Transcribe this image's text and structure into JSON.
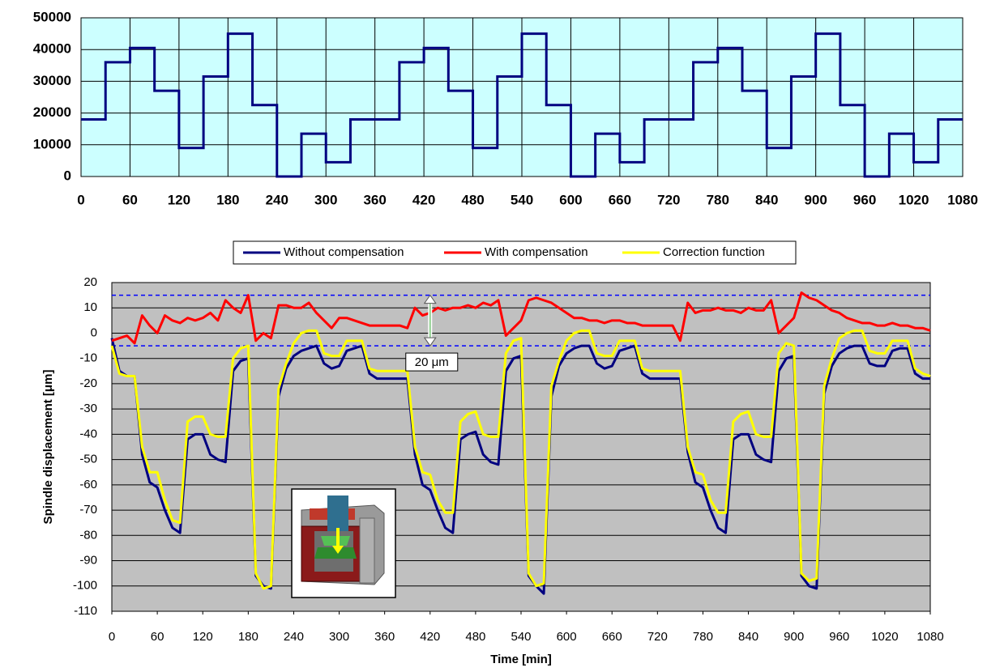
{
  "chart_data": [
    {
      "type": "step",
      "x": [
        0,
        30,
        60,
        90,
        120,
        150,
        180,
        210,
        240,
        270,
        300,
        330,
        360,
        390,
        420,
        450,
        480,
        510,
        540,
        570,
        600,
        630,
        660,
        690,
        720,
        750,
        780,
        810,
        840,
        870,
        900,
        930,
        960,
        990,
        1020,
        1050,
        1080
      ],
      "values": [
        18000,
        36000,
        40500,
        27000,
        9000,
        31500,
        45000,
        22500,
        0,
        13500,
        4500,
        18000,
        18000,
        36000,
        40500,
        27000,
        9000,
        31500,
        45000,
        22500,
        0,
        13500,
        4500,
        18000,
        18000,
        36000,
        40500,
        27000,
        9000,
        31500,
        45000,
        22500,
        0,
        13500,
        4500,
        18000,
        18000
      ],
      "color": "#000080",
      "plot_background": "#ccffff",
      "grid": "both",
      "xlim": [
        0,
        1080
      ],
      "xticks": [
        0,
        60,
        120,
        180,
        240,
        300,
        360,
        420,
        480,
        540,
        600,
        660,
        720,
        780,
        840,
        900,
        960,
        1020,
        1080
      ],
      "ylim": [
        0,
        50000
      ],
      "yticks": [
        0,
        10000,
        20000,
        30000,
        40000,
        50000
      ]
    },
    {
      "type": "line",
      "x_label": "Time [min]",
      "y_label": "Spindle displacement [μm]",
      "plot_background": "#c0c0c0",
      "grid": "y",
      "xlim": [
        0,
        1080
      ],
      "xticks": [
        0,
        60,
        120,
        180,
        240,
        300,
        360,
        420,
        480,
        540,
        600,
        660,
        720,
        780,
        840,
        900,
        960,
        1020,
        1080
      ],
      "ylim": [
        -110,
        20
      ],
      "yticks": [
        -110,
        -100,
        -90,
        -80,
        -70,
        -60,
        -50,
        -40,
        -30,
        -20,
        -10,
        0,
        10,
        20
      ],
      "reference_lines": [
        15,
        -5
      ],
      "reference_color": "#0000ff",
      "annotation": {
        "text": "20 μm",
        "x": 420,
        "from": 15,
        "to": -5
      },
      "x": [
        0,
        10,
        20,
        30,
        40,
        50,
        60,
        70,
        80,
        90,
        100,
        110,
        120,
        130,
        140,
        150,
        160,
        170,
        180,
        190,
        200,
        210,
        220,
        230,
        240,
        250,
        260,
        270,
        280,
        290,
        300,
        310,
        320,
        330,
        340,
        350,
        360,
        370,
        380,
        390,
        400,
        410,
        420,
        430,
        440,
        450,
        460,
        470,
        480,
        490,
        500,
        510,
        520,
        530,
        540,
        550,
        560,
        570,
        580,
        590,
        600,
        610,
        620,
        630,
        640,
        650,
        660,
        670,
        680,
        690,
        700,
        710,
        720,
        730,
        740,
        750,
        760,
        770,
        780,
        790,
        800,
        810,
        820,
        830,
        840,
        850,
        860,
        870,
        880,
        890,
        900,
        910,
        920,
        930,
        940,
        950,
        960,
        970,
        980,
        990,
        1000,
        1010,
        1020,
        1030,
        1040,
        1050,
        1060,
        1070,
        1080
      ],
      "series": [
        {
          "name": "Without compensation",
          "color": "#000080",
          "values": [
            -2,
            -15,
            -17,
            -17,
            -48,
            -59,
            -61,
            -70,
            -77,
            -79,
            -42,
            -40,
            -40,
            -48,
            -50,
            -51,
            -15,
            -11,
            -10,
            -96,
            -100,
            -101,
            -25,
            -14,
            -9,
            -7,
            -6,
            -5,
            -12,
            -14,
            -13,
            -7,
            -6,
            -5,
            -16,
            -18,
            -18,
            -18,
            -18,
            -18,
            -48,
            -60,
            -62,
            -70,
            -77,
            -79,
            -42,
            -40,
            -39,
            -48,
            -51,
            -52,
            -15,
            -10,
            -9,
            -96,
            -100,
            -103,
            -25,
            -13,
            -8,
            -6,
            -5,
            -5,
            -12,
            -14,
            -13,
            -7,
            -6,
            -5,
            -16,
            -18,
            -18,
            -18,
            -18,
            -18,
            -47,
            -59,
            -61,
            -70,
            -77,
            -79,
            -42,
            -40,
            -40,
            -48,
            -50,
            -51,
            -15,
            -10,
            -9,
            -96,
            -100,
            -101,
            -24,
            -13,
            -8,
            -6,
            -5,
            -5,
            -12,
            -13,
            -13,
            -7,
            -6,
            -6,
            -16,
            -18,
            -18
          ]
        },
        {
          "name": "With compensation",
          "color": "#ff0000",
          "values": [
            -3,
            -2,
            -1,
            -4,
            7,
            3,
            0,
            7,
            5,
            4,
            6,
            5,
            6,
            8,
            5,
            13,
            10,
            8,
            15,
            -3,
            0,
            -2,
            11,
            11,
            10,
            10,
            12,
            8,
            5,
            2,
            6,
            6,
            5,
            4,
            3,
            3,
            3,
            3,
            3,
            2,
            10,
            7,
            8,
            10,
            9,
            10,
            10,
            11,
            10,
            12,
            11,
            13,
            -1,
            2,
            5,
            13,
            14,
            13,
            12,
            10,
            8,
            6,
            6,
            5,
            5,
            4,
            5,
            5,
            4,
            4,
            3,
            3,
            3,
            3,
            3,
            -3,
            12,
            8,
            9,
            9,
            10,
            9,
            9,
            8,
            10,
            9,
            9,
            13,
            0,
            3,
            6,
            16,
            14,
            13,
            11,
            9,
            8,
            6,
            5,
            4,
            4,
            3,
            3,
            4,
            3,
            3,
            2,
            2,
            1
          ]
        },
        {
          "name": "Correction function",
          "color": "#ffff00",
          "values": [
            -5,
            -16,
            -17,
            -17,
            -45,
            -55,
            -55,
            -66,
            -74,
            -75,
            -35,
            -33,
            -33,
            -40,
            -41,
            -41,
            -10,
            -6,
            -5,
            -95,
            -101,
            -100,
            -22,
            -12,
            -4,
            0,
            1,
            1,
            -8,
            -9,
            -9,
            -3,
            -3,
            -3,
            -14,
            -15,
            -15,
            -15,
            -15,
            -15,
            -45,
            -55,
            -56,
            -66,
            -71,
            -71,
            -35,
            -32,
            -31,
            -40,
            -41,
            -41,
            -8,
            -3,
            -2,
            -95,
            -100,
            -99,
            -21,
            -11,
            -3,
            0,
            1,
            1,
            -8,
            -9,
            -9,
            -3,
            -3,
            -3,
            -14,
            -15,
            -15,
            -15,
            -15,
            -15,
            -45,
            -55,
            -56,
            -66,
            -71,
            -71,
            -35,
            -32,
            -31,
            -40,
            -41,
            -41,
            -8,
            -4,
            -5,
            -95,
            -98,
            -97,
            -21,
            -10,
            -2,
            0,
            1,
            1,
            -7,
            -8,
            -8,
            -3,
            -3,
            -3,
            -14,
            -16,
            -17
          ]
        }
      ]
    }
  ]
}
